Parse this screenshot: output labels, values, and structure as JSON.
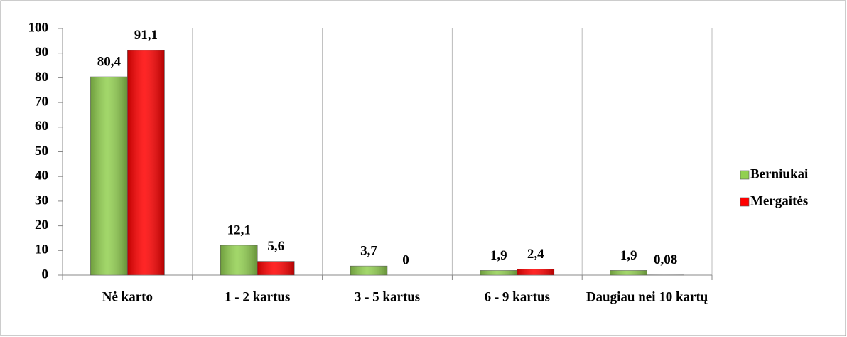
{
  "chart_data": {
    "type": "bar",
    "categories": [
      "Nė karto",
      "1 - 2 kartus",
      "3 - 5 kartus",
      "6 - 9 kartus",
      "Daugiau nei 10 kartų"
    ],
    "series": [
      {
        "name": "Berniukai",
        "color": "#92d050",
        "values": [
          80.4,
          12.1,
          3.7,
          1.9,
          1.9
        ],
        "value_labels": [
          "80,4",
          "12,1",
          "3,7",
          "1,9",
          "1,9"
        ]
      },
      {
        "name": "Mergaitės",
        "color": "#ff0000",
        "values": [
          91.1,
          5.6,
          0,
          2.4,
          0.08
        ],
        "value_labels": [
          "91,1",
          "5,6",
          "0",
          "2,4",
          "0,08"
        ]
      }
    ],
    "ylim": [
      0,
      100
    ],
    "yticks": [
      0,
      10,
      20,
      30,
      40,
      50,
      60,
      70,
      80,
      90,
      100
    ],
    "legend": "right"
  }
}
